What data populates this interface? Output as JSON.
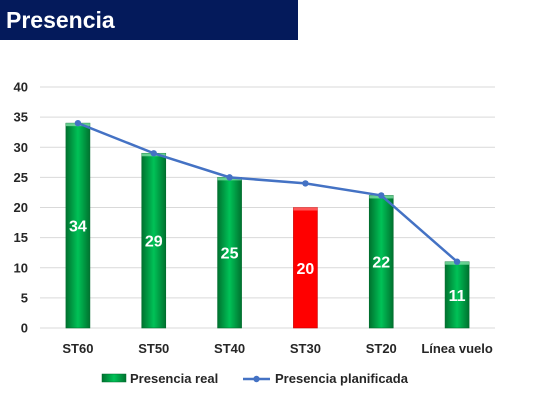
{
  "title": "Presencia",
  "chart_data": {
    "type": "bar",
    "categories": [
      "ST60",
      "ST50",
      "ST40",
      "ST30",
      "ST20",
      "Línea vuelo"
    ],
    "series": [
      {
        "name": "Presencia real",
        "values": [
          34,
          29,
          25,
          20,
          22,
          11
        ],
        "color": "#00b050",
        "highlight": {
          "index": 3,
          "color": "#ff0000"
        }
      },
      {
        "name": "Presencia planificada",
        "type": "line",
        "values": [
          34,
          29,
          25,
          24,
          22,
          11
        ],
        "color": "#4472c4"
      }
    ],
    "ylim": [
      0,
      40
    ],
    "yticks": [
      0,
      5,
      10,
      15,
      20,
      25,
      30,
      35,
      40
    ],
    "grid": true,
    "legend": "bottom"
  }
}
